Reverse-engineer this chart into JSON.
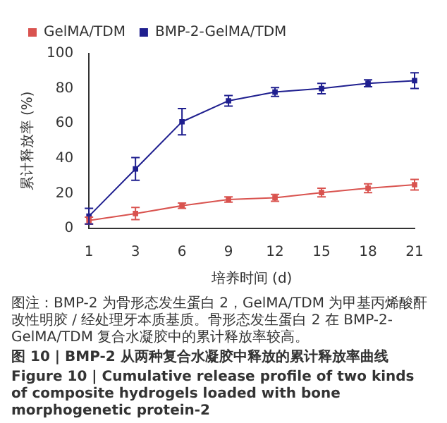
{
  "chart_data": {
    "type": "line",
    "xlabel": "培养时间 (d)",
    "ylabel": "累计释放率 (%)",
    "categories": [
      "1",
      "3",
      "6",
      "9",
      "12",
      "15",
      "18",
      "21"
    ],
    "series": [
      {
        "name": "GelMA/TDM",
        "color": "#d9534f",
        "values": [
          4.5,
          8.5,
          13,
          16.5,
          17.5,
          20.5,
          23,
          25
        ],
        "errors": [
          2,
          3.5,
          1.5,
          1.5,
          2,
          2.5,
          2.5,
          3
        ]
      },
      {
        "name": "BMP-2-GelMA/TDM",
        "color": "#1f1f8f",
        "values": [
          7,
          34,
          61,
          73,
          78,
          80,
          83,
          84.5
        ],
        "errors": [
          4.5,
          6.5,
          7.5,
          3,
          2.5,
          3,
          2,
          4.5
        ]
      }
    ],
    "ylim": [
      0,
      100
    ],
    "yticks": [
      0,
      20,
      40,
      60,
      80,
      100
    ],
    "grid": false,
    "legend": "top left",
    "marker": "square",
    "line_style": "solid",
    "annotations": [
      "图注：BMP-2 为骨形态发生蛋白 2，GelMA/TDM 为甲基丙烯酸酐改性明胶 / 经处理牙本质基质。骨形态发生蛋白 2 在 BMP-2-GelMA/TDM 复合水凝胶中的累计释放率较高。",
      "图 10 | BMP-2 从两种复合水凝胶中释放的累计释放率曲线",
      "Figure 10 | Cumulative release profile of two kinds of composite hydrogels loaded with bone morphogenetic protein-2"
    ]
  }
}
